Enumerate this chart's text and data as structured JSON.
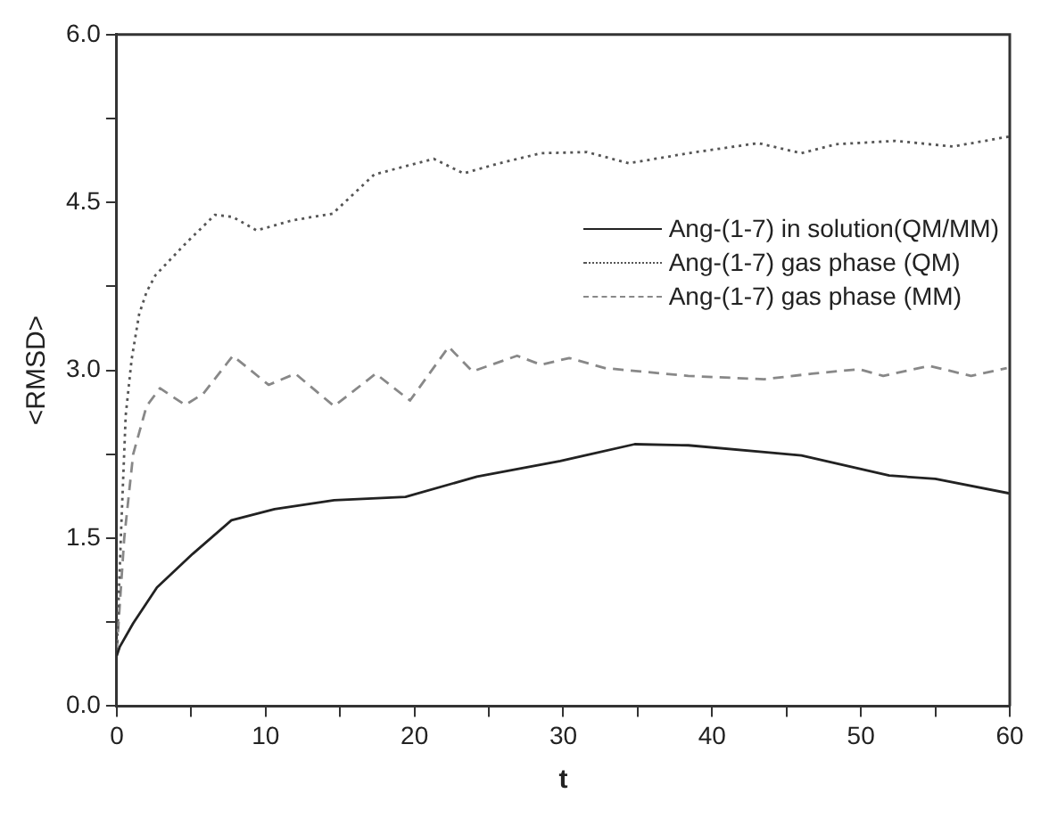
{
  "chart_data": {
    "type": "line",
    "xlabel": "t",
    "ylabel": "<RMSD>",
    "xlim": [
      0,
      60
    ],
    "ylim": [
      0,
      6
    ],
    "xticks": [
      0,
      {
        "value": 5,
        "label": null
      },
      10,
      {
        "value": 15,
        "label": null
      },
      20,
      {
        "value": 25,
        "label": null
      },
      30,
      {
        "value": 35,
        "label": null
      },
      40,
      {
        "value": 45,
        "label": null
      },
      50,
      {
        "value": 55,
        "label": null
      },
      60
    ],
    "yticks": [
      "0.0",
      {
        "value": 0.75,
        "label": null
      },
      {
        "value": 1.5,
        "label": "1.5"
      },
      {
        "value": 2.25,
        "label": null
      },
      {
        "value": 3,
        "label": "3.0"
      },
      {
        "value": 3.75,
        "label": null
      },
      {
        "value": 4.5,
        "label": "4.5"
      },
      {
        "value": 5.25,
        "label": null
      },
      {
        "value": 6,
        "label": "6.0"
      }
    ],
    "grid": false,
    "legend": "top right",
    "marker": "none",
    "series": [
      {
        "name": "Ang-(1-7) in solution(QM/MM)",
        "color": "#222222",
        "line_style": "solid",
        "x": [
          0,
          0.2,
          1.1,
          2.7,
          5.1,
          7.7,
          10.6,
          14.6,
          19.4,
          24.2,
          29.8,
          34.8,
          38.4,
          46,
          51.9,
          55,
          60
        ],
        "values": [
          0.45,
          0.53,
          0.74,
          1.06,
          1.36,
          1.66,
          1.76,
          1.84,
          1.87,
          2.05,
          2.19,
          2.34,
          2.33,
          2.24,
          2.06,
          2.03,
          1.9
        ]
      },
      {
        "name": "Ang-(1-7) gas phase (QM)",
        "color": "#555555",
        "line_style": "dotted",
        "x": [
          0,
          0.3,
          0.6,
          1,
          1.5,
          2,
          2.6,
          4.6,
          6.6,
          7.8,
          9.4,
          11.8,
          14.5,
          17.3,
          19.3,
          21.3,
          23.3,
          25.7,
          28.5,
          31.6,
          34.4,
          38.4,
          43.1,
          46,
          48.3,
          52.3,
          56.2,
          60
        ],
        "values": [
          0.5,
          1.6,
          2.6,
          3.1,
          3.5,
          3.7,
          3.85,
          4.13,
          4.39,
          4.37,
          4.25,
          4.34,
          4.4,
          4.75,
          4.82,
          4.89,
          4.76,
          4.85,
          4.94,
          4.95,
          4.85,
          4.94,
          5.03,
          4.94,
          5.02,
          5.05,
          5,
          5.09
        ]
      },
      {
        "name": "Ang-(1-7) gas phase (MM)",
        "color": "#888888",
        "line_style": "dashed",
        "x": [
          0,
          0.5,
          1.1,
          2,
          2.9,
          4.6,
          5.8,
          7.8,
          10.2,
          12,
          14.6,
          17.4,
          19.7,
          22.3,
          23.9,
          26.9,
          28.5,
          30.4,
          32.8,
          35.2,
          38.4,
          43.5,
          46.7,
          49.9,
          51.5,
          54.6,
          57.4,
          59.8
        ],
        "values": [
          0.5,
          1.5,
          2.25,
          2.68,
          2.84,
          2.69,
          2.79,
          3.13,
          2.87,
          2.97,
          2.68,
          2.97,
          2.73,
          3.21,
          2.99,
          3.13,
          3.05,
          3.11,
          3.02,
          2.99,
          2.95,
          2.92,
          2.97,
          3.01,
          2.95,
          3.04,
          2.95,
          3.02
        ]
      }
    ]
  }
}
